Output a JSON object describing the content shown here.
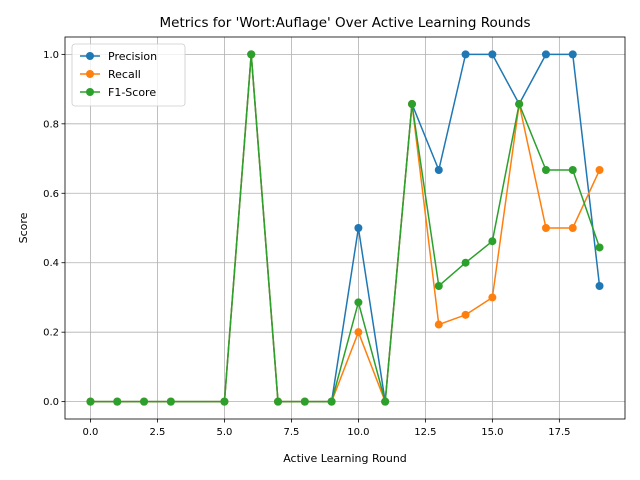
{
  "chart_data": {
    "type": "line",
    "title": "Metrics for 'Wort:Auflage' Over Active Learning Rounds",
    "xlabel": "Active Learning Round",
    "ylabel": "Score",
    "xlim": [
      -0.95,
      19.95
    ],
    "ylim": [
      -0.05,
      1.05
    ],
    "xticks": [
      0.0,
      2.5,
      5.0,
      7.5,
      10.0,
      12.5,
      15.0,
      17.5
    ],
    "xtick_labels": [
      "0.0",
      "2.5",
      "5.0",
      "7.5",
      "10.0",
      "12.5",
      "15.0",
      "17.5"
    ],
    "yticks": [
      0.0,
      0.2,
      0.4,
      0.6,
      0.8,
      1.0
    ],
    "ytick_labels": [
      "0.0",
      "0.2",
      "0.4",
      "0.6",
      "0.8",
      "1.0"
    ],
    "grid": true,
    "legend": "upper-left",
    "x": [
      0,
      1,
      2,
      3,
      5,
      6,
      7,
      8,
      9,
      10,
      11,
      12,
      13,
      14,
      15,
      16,
      17,
      18,
      19
    ],
    "series": [
      {
        "name": "Precision",
        "color": "#1f77b4",
        "values": [
          0.0,
          0.0,
          0.0,
          0.0,
          0.0,
          1.0,
          0.0,
          0.0,
          0.0,
          0.5,
          0.0,
          0.857,
          0.667,
          1.0,
          1.0,
          0.857,
          1.0,
          1.0,
          0.333
        ]
      },
      {
        "name": "Recall",
        "color": "#ff7f0e",
        "values": [
          0.0,
          0.0,
          0.0,
          0.0,
          0.0,
          1.0,
          0.0,
          0.0,
          0.0,
          0.2,
          0.0,
          0.857,
          0.222,
          0.25,
          0.3,
          0.857,
          0.5,
          0.5,
          0.667
        ]
      },
      {
        "name": "F1-Score",
        "color": "#2ca02c",
        "values": [
          0.0,
          0.0,
          0.0,
          0.0,
          0.0,
          1.0,
          0.0,
          0.0,
          0.0,
          0.286,
          0.0,
          0.857,
          0.333,
          0.4,
          0.462,
          0.857,
          0.667,
          0.667,
          0.444
        ]
      }
    ]
  }
}
